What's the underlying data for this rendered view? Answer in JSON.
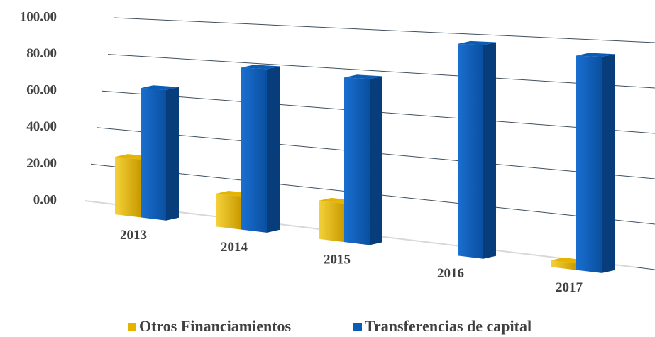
{
  "chart_data": {
    "type": "bar3d",
    "categories": [
      "2013",
      "2014",
      "2015",
      "2016",
      "2017"
    ],
    "series": [
      {
        "name": "Otros Financiamientos",
        "color": "#e6b400",
        "values": [
          31,
          17,
          19,
          0,
          3
        ]
      },
      {
        "name": "Transferencias de capital",
        "color": "#0b5cb5",
        "values": [
          69,
          83,
          81,
          100,
          97
        ]
      }
    ],
    "ylim": [
      0,
      100
    ],
    "yticks": [
      {
        "value": 0,
        "label": "0.00"
      },
      {
        "value": 20,
        "label": "20.00"
      },
      {
        "value": 40,
        "label": "40.00"
      },
      {
        "value": 60,
        "label": "60.00"
      },
      {
        "value": 80,
        "label": "80.00"
      },
      {
        "value": 100,
        "label": "100.00"
      }
    ],
    "grid": true,
    "legend": "bottom"
  }
}
